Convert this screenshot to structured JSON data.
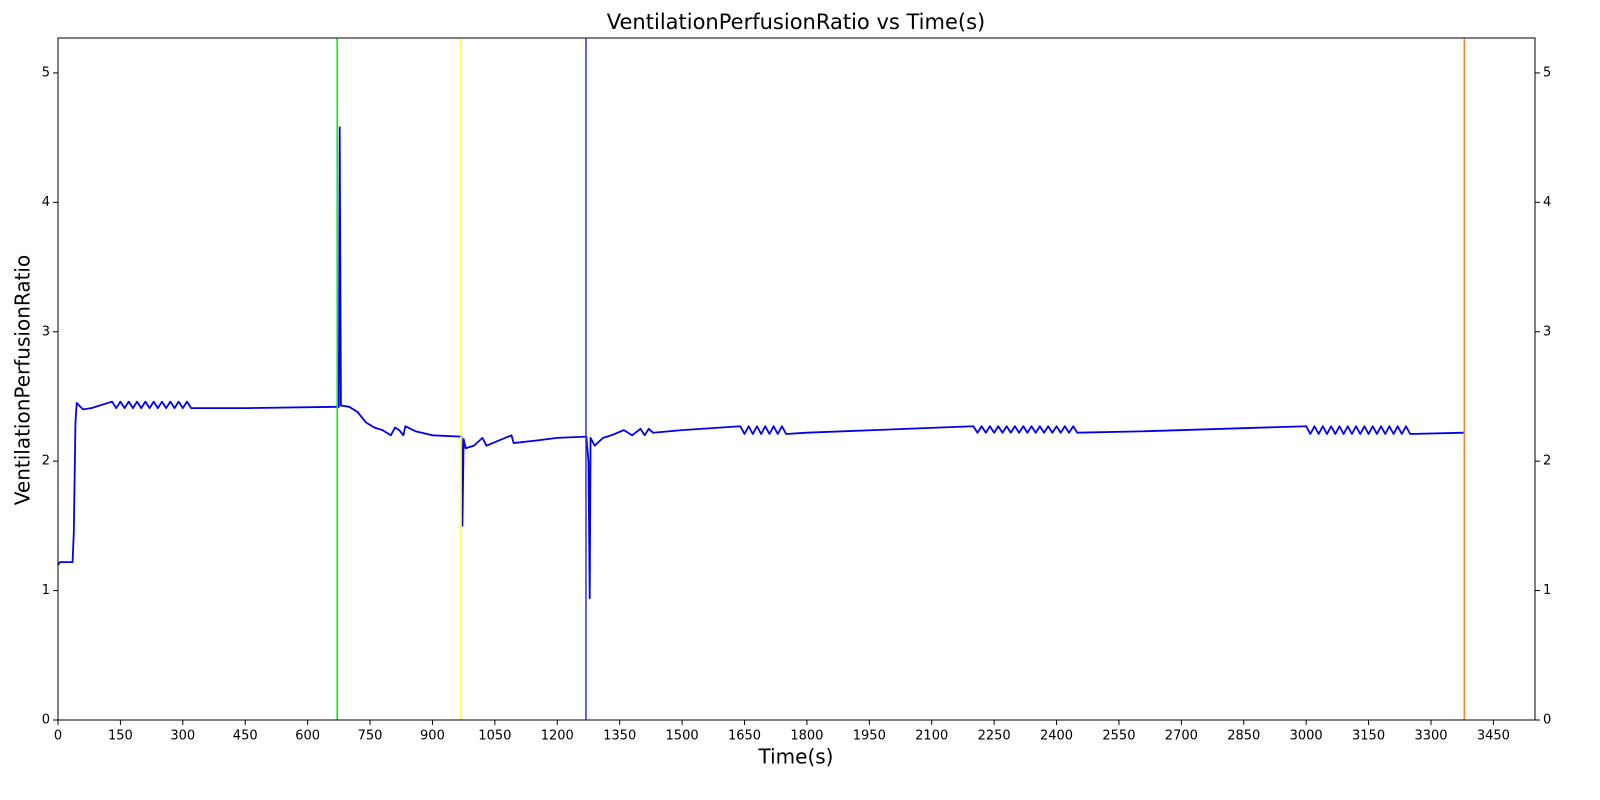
{
  "chart_data": {
    "type": "line",
    "title": "VentilationPerfusionRatio vs Time(s)",
    "xlabel": "Time(s)",
    "ylabel": "VentilationPerfusionRatio",
    "color": "#0000ee",
    "x": [
      0,
      5,
      35,
      38,
      42,
      45,
      60,
      80,
      120,
      130,
      140,
      150,
      160,
      170,
      180,
      190,
      200,
      210,
      220,
      230,
      240,
      250,
      260,
      270,
      280,
      290,
      300,
      310,
      320,
      450,
      670,
      675,
      677,
      680,
      700,
      720,
      740,
      760,
      780,
      800,
      810,
      820,
      830,
      835,
      860,
      900,
      970,
      972,
      975,
      980,
      1000,
      1020,
      1030,
      1060,
      1090,
      1095,
      1150,
      1200,
      1270,
      1275,
      1278,
      1280,
      1290,
      1310,
      1330,
      1360,
      1380,
      1400,
      1410,
      1420,
      1430,
      1500,
      1640,
      1650,
      1660,
      1670,
      1680,
      1690,
      1700,
      1710,
      1720,
      1730,
      1740,
      1750,
      1800,
      2200,
      2210,
      2220,
      2230,
      2240,
      2250,
      2260,
      2270,
      2280,
      2290,
      2300,
      2310,
      2320,
      2330,
      2340,
      2350,
      2360,
      2370,
      2380,
      2390,
      2400,
      2410,
      2420,
      2430,
      2440,
      2450,
      2600,
      3000,
      3010,
      3020,
      3030,
      3040,
      3050,
      3060,
      3070,
      3080,
      3090,
      3100,
      3110,
      3120,
      3130,
      3140,
      3150,
      3160,
      3170,
      3180,
      3190,
      3200,
      3210,
      3220,
      3230,
      3240,
      3250,
      3380
    ],
    "values": [
      1.2,
      1.22,
      1.22,
      1.45,
      2.3,
      2.45,
      2.4,
      2.41,
      2.45,
      2.46,
      2.41,
      2.46,
      2.41,
      2.46,
      2.41,
      2.46,
      2.41,
      2.46,
      2.41,
      2.46,
      2.41,
      2.46,
      2.41,
      2.46,
      2.41,
      2.46,
      2.41,
      2.46,
      2.41,
      2.41,
      2.42,
      2.42,
      4.58,
      2.43,
      2.42,
      2.38,
      2.3,
      2.26,
      2.24,
      2.2,
      2.26,
      2.24,
      2.2,
      2.27,
      2.23,
      2.2,
      2.19,
      1.5,
      2.17,
      2.1,
      2.12,
      2.18,
      2.12,
      2.16,
      2.2,
      2.14,
      2.16,
      2.18,
      2.19,
      2.0,
      0.94,
      2.18,
      2.12,
      2.18,
      2.2,
      2.24,
      2.2,
      2.25,
      2.2,
      2.25,
      2.22,
      2.24,
      2.27,
      2.21,
      2.27,
      2.21,
      2.27,
      2.21,
      2.27,
      2.21,
      2.27,
      2.21,
      2.27,
      2.21,
      2.22,
      2.27,
      2.22,
      2.27,
      2.22,
      2.27,
      2.22,
      2.27,
      2.22,
      2.27,
      2.22,
      2.27,
      2.22,
      2.27,
      2.22,
      2.27,
      2.22,
      2.27,
      2.22,
      2.27,
      2.22,
      2.27,
      2.22,
      2.27,
      2.22,
      2.27,
      2.22,
      2.23,
      2.27,
      2.21,
      2.27,
      2.21,
      2.27,
      2.21,
      2.27,
      2.21,
      2.27,
      2.21,
      2.27,
      2.21,
      2.27,
      2.21,
      2.27,
      2.21,
      2.27,
      2.21,
      2.27,
      2.21,
      2.27,
      2.21,
      2.27,
      2.21,
      2.27,
      2.21,
      2.22
    ],
    "vlines": [
      {
        "x": 671,
        "color": "#00ee00"
      },
      {
        "x": 969,
        "color": "#ffff00"
      },
      {
        "x": 1269,
        "color": "#3333cc"
      },
      {
        "x": 3380,
        "color": "#ff8833"
      }
    ],
    "xlim": [
      0,
      3550
    ],
    "xticks": [
      0,
      150,
      300,
      450,
      600,
      750,
      900,
      1050,
      1200,
      1350,
      1500,
      1650,
      1800,
      1950,
      2100,
      2250,
      2400,
      2550,
      2700,
      2850,
      3000,
      3150,
      3300,
      3450
    ],
    "ylim": [
      0,
      5.27
    ],
    "yticks": [
      0,
      1,
      2,
      3,
      4,
      5
    ],
    "y2lim": [
      0,
      5.27
    ],
    "y2ticks": [
      0,
      1,
      2,
      3,
      4,
      5
    ]
  }
}
